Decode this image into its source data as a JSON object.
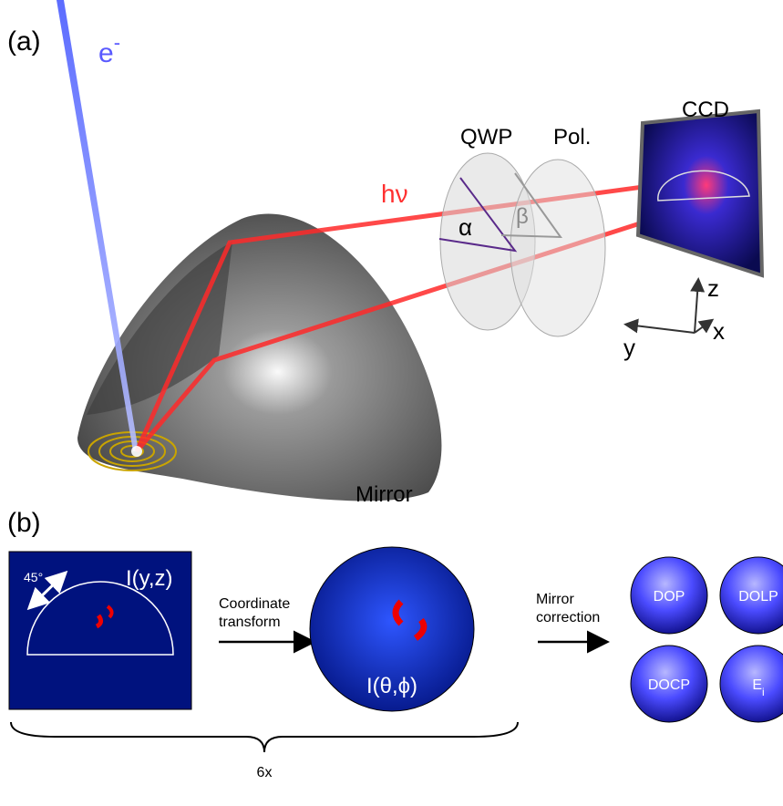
{
  "panel_a": {
    "label": "(a)",
    "electron": {
      "base": "e",
      "sup": "-"
    },
    "photon": "hν",
    "qwp": "QWP",
    "polarizer": "Pol.",
    "ccd": "CCD",
    "alpha": "α",
    "beta": "β",
    "axes": {
      "z": "z",
      "x": "x",
      "y": "y"
    },
    "mirror": "Mirror"
  },
  "panel_b": {
    "label": "(b)",
    "ccd_image": {
      "angle": "45°",
      "label": "I(y,z)"
    },
    "step1": [
      "Coordinate",
      "transform"
    ],
    "angular_image": "I(θ,ϕ)",
    "step2": [
      "Mirror",
      "correction"
    ],
    "outputs": [
      {
        "base": "DOP"
      },
      {
        "base": "DOLP"
      },
      {
        "base": "DOCP"
      },
      {
        "base": "E",
        "sub": "i"
      }
    ],
    "repeat": "6x"
  }
}
